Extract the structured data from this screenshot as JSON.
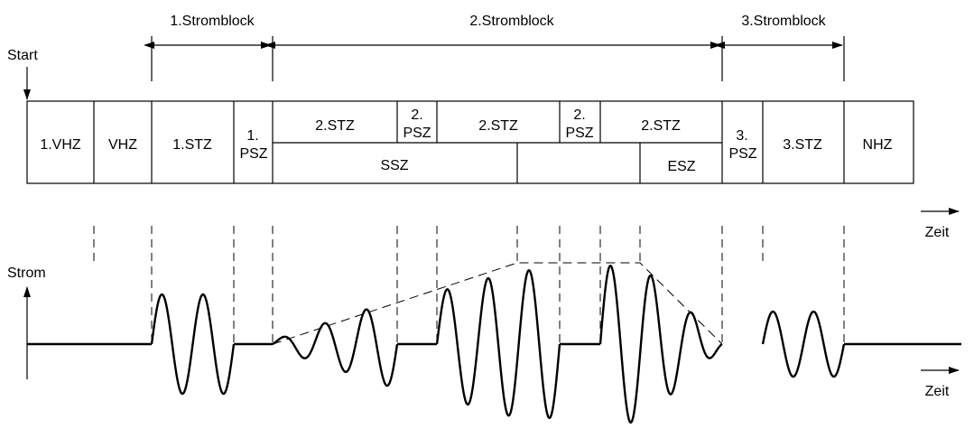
{
  "blocks": {
    "block1": "1.Stromblock",
    "block2": "2.Stromblock",
    "block3": "3.Stromblock"
  },
  "start_label": "Start",
  "axis": {
    "time_top": "Zeit",
    "time_bottom": "Zeit",
    "current": "Strom"
  },
  "segments": {
    "vhz1": "1.VHZ",
    "vhz": "VHZ",
    "stz1": "1.STZ",
    "psz1_a": "1.",
    "psz1_b": "PSZ",
    "stz2_a": "2.STZ",
    "psz2a_a": "2.",
    "psz2a_b": "PSZ",
    "stz2_b": "2.STZ",
    "psz2b_a": "2.",
    "psz2b_b": "PSZ",
    "stz2_c": "2.STZ",
    "ssz": "SSZ",
    "esz": "ESZ",
    "psz3_a": "3.",
    "psz3_b": "PSZ",
    "stz3": "3.STZ",
    "nhz": "NHZ"
  }
}
